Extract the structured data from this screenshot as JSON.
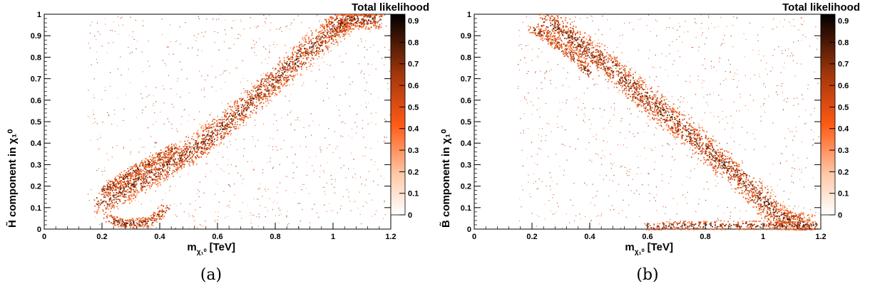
{
  "figure": {
    "panels": [
      {
        "caption": "(a)",
        "xlabel": "m",
        "xlabel_sub": "χ₁⁰",
        "xlabel_unit": "[TeV]",
        "ylabel": "H̃ component in χ₁⁰",
        "colorbar_title": "Total likelihood"
      },
      {
        "caption": "(b)",
        "xlabel": "m",
        "xlabel_sub": "χ₁⁰",
        "xlabel_unit": "[TeV]",
        "ylabel": "B̃ component in χ₁⁰",
        "colorbar_title": "Total likelihood"
      }
    ],
    "colors": {
      "low": "#ffffff",
      "mid": "#ff5a14",
      "high": "#000000"
    }
  },
  "chart_data": [
    {
      "type": "scatter",
      "title": "",
      "xlabel": "m_χ1^0 [TeV]",
      "ylabel": "H̃ component in χ1^0",
      "xlim": [
        0,
        1.2
      ],
      "ylim": [
        0,
        1
      ],
      "xticks": [
        "0",
        "0.2",
        "0.4",
        "0.6",
        "0.8",
        "1",
        "1.2"
      ],
      "yticks": [
        "0",
        "0.1",
        "0.2",
        "0.3",
        "0.4",
        "0.5",
        "0.6",
        "0.7",
        "0.8",
        "0.9",
        "1"
      ],
      "colorbar": {
        "title": "Total likelihood",
        "range": [
          0,
          0.93
        ],
        "ticks": [
          "0",
          "0.1",
          "0.2",
          "0.3",
          "0.4",
          "0.5",
          "0.6",
          "0.7",
          "0.8",
          "0.9"
        ]
      },
      "series": [
        {
          "x": [
            0.2,
            0.3,
            0.4,
            0.5,
            0.6,
            0.7,
            0.8,
            0.9,
            1.0,
            1.05,
            1.15
          ],
          "y": [
            0.12,
            0.2,
            0.28,
            0.36,
            0.46,
            0.58,
            0.7,
            0.82,
            0.93,
            0.98,
            0.98
          ]
        },
        {
          "x": [
            0.2,
            0.25,
            0.3,
            0.35,
            0.4,
            0.45
          ],
          "y": [
            0.18,
            0.22,
            0.27,
            0.3,
            0.34,
            0.38
          ]
        },
        {
          "x": [
            0.22,
            0.27,
            0.32,
            0.37,
            0.42
          ],
          "y": [
            0.05,
            0.03,
            0.03,
            0.04,
            0.1
          ]
        }
      ]
    },
    {
      "type": "scatter",
      "title": "",
      "xlabel": "m_χ1^0 [TeV]",
      "ylabel": "B̃ component in χ1^0",
      "xlim": [
        0,
        1.2
      ],
      "ylim": [
        0,
        1
      ],
      "xticks": [
        "0",
        "0.2",
        "0.4",
        "0.6",
        "0.8",
        "1",
        "1.2"
      ],
      "yticks": [
        "0",
        "0.1",
        "0.2",
        "0.3",
        "0.4",
        "0.5",
        "0.6",
        "0.7",
        "0.8",
        "0.9",
        "1"
      ],
      "colorbar": {
        "title": "Total likelihood",
        "range": [
          0,
          0.93
        ],
        "ticks": [
          "0",
          "0.1",
          "0.2",
          "0.3",
          "0.4",
          "0.5",
          "0.6",
          "0.7",
          "0.8",
          "0.9"
        ]
      },
      "series": [
        {
          "x": [
            0.25,
            0.35,
            0.45,
            0.55,
            0.65,
            0.75,
            0.85,
            0.95,
            1.05,
            1.15
          ],
          "y": [
            0.97,
            0.88,
            0.78,
            0.66,
            0.55,
            0.44,
            0.32,
            0.2,
            0.06,
            0.02
          ]
        },
        {
          "x": [
            0.2,
            0.25,
            0.3,
            0.35,
            0.4
          ],
          "y": [
            0.93,
            0.9,
            0.85,
            0.8,
            0.72
          ]
        },
        {
          "x": [
            0.6,
            0.7,
            0.8,
            0.9,
            1.0,
            1.1,
            1.18
          ],
          "y": [
            0.01,
            0.02,
            0.02,
            0.02,
            0.02,
            0.02,
            0.02
          ]
        }
      ]
    }
  ]
}
